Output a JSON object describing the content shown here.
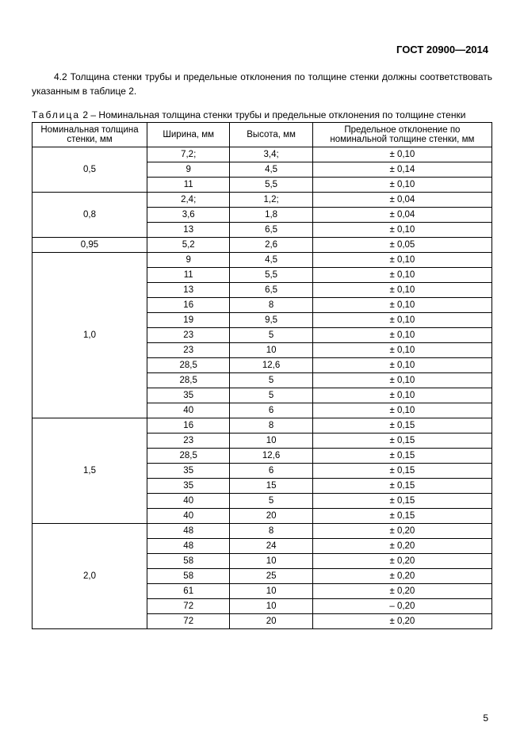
{
  "header": "ГОСТ 20900—2014",
  "intro_text": "4.2 Толщина стенки трубы и предельные отклонения по толщине стенки должны соответствовать указанным в таблице 2.",
  "table_caption_spaced": "Таблица",
  "table_caption_rest": " 2 – Номинальная толщина стенки  трубы и предельные отклонения по толщине стенки",
  "columns": [
    "Номинальная толщина\nстенки,\nмм",
    "Ширина,\nмм",
    "Высота,\nмм",
    "Предельное отклонение по\nноминальной толщине стенки,\nмм"
  ],
  "groups": [
    {
      "nominal": "0,5",
      "rows": [
        {
          "w": "7,2;",
          "h": "3,4;",
          "d": "± 0,10"
        },
        {
          "w": "9",
          "h": "4,5",
          "d": "± 0,14"
        },
        {
          "w": "11",
          "h": "5,5",
          "d": "± 0,10"
        }
      ]
    },
    {
      "nominal": "0,8",
      "rows": [
        {
          "w": "2,4;",
          "h": "1,2;",
          "d": "± 0,04"
        },
        {
          "w": "3,6",
          "h": "1,8",
          "d": "± 0,04"
        },
        {
          "w": "13",
          "h": "6,5",
          "d": "± 0,10"
        }
      ]
    },
    {
      "nominal": "0,95",
      "rows": [
        {
          "w": "5,2",
          "h": "2,6",
          "d": "± 0,05"
        }
      ]
    },
    {
      "nominal": "1,0",
      "rows": [
        {
          "w": "9",
          "h": "4,5",
          "d": "± 0,10"
        },
        {
          "w": "11",
          "h": "5,5",
          "d": "± 0,10"
        },
        {
          "w": "13",
          "h": "6,5",
          "d": "± 0,10"
        },
        {
          "w": "16",
          "h": "8",
          "d": "± 0,10"
        },
        {
          "w": "19",
          "h": "9,5",
          "d": "± 0,10"
        },
        {
          "w": "23",
          "h": "5",
          "d": "± 0,10"
        },
        {
          "w": "23",
          "h": "10",
          "d": "± 0,10"
        },
        {
          "w": "28,5",
          "h": "12,6",
          "d": "± 0,10"
        },
        {
          "w": "28,5",
          "h": "5",
          "d": "± 0,10"
        },
        {
          "w": "35",
          "h": "5",
          "d": "± 0,10"
        },
        {
          "w": "40",
          "h": "6",
          "d": "± 0,10"
        }
      ]
    },
    {
      "nominal": "1,5",
      "rows": [
        {
          "w": "16",
          "h": "8",
          "d": "± 0,15"
        },
        {
          "w": "23",
          "h": "10",
          "d": "± 0,15"
        },
        {
          "w": "28,5",
          "h": "12,6",
          "d": "± 0,15"
        },
        {
          "w": "35",
          "h": "6",
          "d": "± 0,15"
        },
        {
          "w": "35",
          "h": "15",
          "d": "± 0,15"
        },
        {
          "w": "40",
          "h": "5",
          "d": "± 0,15"
        },
        {
          "w": "40",
          "h": "20",
          "d": "± 0,15"
        }
      ]
    },
    {
      "nominal": "2,0",
      "rows": [
        {
          "w": "48",
          "h": "8",
          "d": "± 0,20"
        },
        {
          "w": "48",
          "h": "24",
          "d": "± 0,20"
        },
        {
          "w": "58",
          "h": "10",
          "d": "± 0,20"
        },
        {
          "w": "58",
          "h": "25",
          "d": "± 0,20"
        },
        {
          "w": "61",
          "h": "10",
          "d": "± 0,20"
        },
        {
          "w": "72",
          "h": "10",
          "d": "– 0,20"
        },
        {
          "w": "72",
          "h": "20",
          "d": "± 0,20"
        }
      ]
    }
  ],
  "page_number": "5"
}
